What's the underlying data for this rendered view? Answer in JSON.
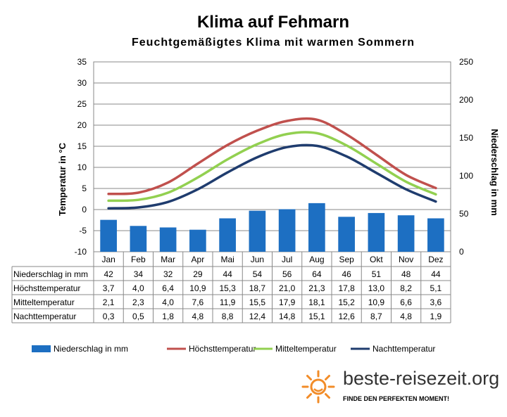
{
  "chart_data": {
    "type": "bar+line",
    "title": "Klima auf Fehmarn",
    "subtitle": "Feuchtgemäßigtes Klima mit warmen Sommern",
    "ylabel": "Temperatur in °C",
    "y2label": "Niederschlag in mm",
    "ylim": [
      -10,
      35
    ],
    "y2lim": [
      0,
      250
    ],
    "yticks": [
      "35",
      "30",
      "25",
      "20",
      "15",
      "10",
      "5",
      "0",
      "-5",
      "-10"
    ],
    "y2ticks": [
      "250",
      "200",
      "150",
      "100",
      "50",
      "0"
    ],
    "categories": [
      "Jan",
      "Feb",
      "Mar",
      "Apr",
      "Mai",
      "Jun",
      "Jul",
      "Aug",
      "Sep",
      "Okt",
      "Nov",
      "Dez"
    ],
    "grid": true,
    "legend_position": "bottom",
    "series": [
      {
        "name": "Niederschlag in mm",
        "type": "bar",
        "axis": "right",
        "color": "#1d6fc2",
        "values": [
          42,
          34,
          32,
          29,
          44,
          54,
          56,
          64,
          46,
          51,
          48,
          44
        ],
        "labels": [
          "42",
          "34",
          "32",
          "29",
          "44",
          "54",
          "56",
          "64",
          "46",
          "51",
          "48",
          "44"
        ]
      },
      {
        "name": "Höchsttemperatur",
        "type": "line",
        "axis": "left",
        "color": "#c0504d",
        "values": [
          3.7,
          4.0,
          6.4,
          10.9,
          15.3,
          18.7,
          21.0,
          21.3,
          17.8,
          13.0,
          8.2,
          5.1
        ],
        "labels": [
          "3,7",
          "4,0",
          "6,4",
          "10,9",
          "15,3",
          "18,7",
          "21,0",
          "21,3",
          "17,8",
          "13,0",
          "8,2",
          "5,1"
        ]
      },
      {
        "name": "Mitteltemperatur",
        "type": "line",
        "axis": "left",
        "color": "#92d050",
        "values": [
          2.1,
          2.3,
          4.0,
          7.6,
          11.9,
          15.5,
          17.9,
          18.1,
          15.2,
          10.9,
          6.6,
          3.6
        ],
        "labels": [
          "2,1",
          "2,3",
          "4,0",
          "7,6",
          "11,9",
          "15,5",
          "17,9",
          "18,1",
          "15,2",
          "10,9",
          "6,6",
          "3,6"
        ]
      },
      {
        "name": "Nachttemperatur",
        "type": "line",
        "axis": "left",
        "color": "#1f3c6e",
        "values": [
          0.3,
          0.5,
          1.8,
          4.8,
          8.8,
          12.4,
          14.8,
          15.1,
          12.6,
          8.7,
          4.8,
          1.9
        ],
        "labels": [
          "0,3",
          "0,5",
          "1,8",
          "4,8",
          "8,8",
          "12,4",
          "14,8",
          "15,1",
          "12,6",
          "8,7",
          "4,8",
          "1,9"
        ]
      }
    ]
  },
  "brand": {
    "name": "beste-reisezeit.org",
    "tagline": "FINDE DEN PERFEKTEN MOMENT!"
  }
}
